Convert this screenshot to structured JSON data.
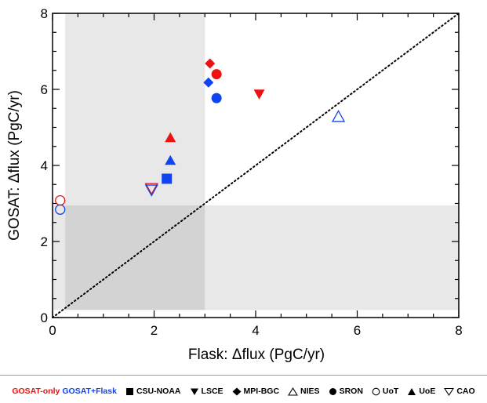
{
  "chart_data": {
    "type": "scatter",
    "xlabel_prefix": "Flask: ",
    "xlabel_delta": "Δ",
    "xlabel_suffix": "flux (PgC/yr)",
    "ylabel_prefix": "GOSAT: ",
    "ylabel_delta": "Δ",
    "ylabel_suffix": "flux (PgC/yr)",
    "xlim": [
      0,
      8
    ],
    "ylim": [
      0,
      8
    ],
    "xticks": [
      "0",
      "2",
      "4",
      "6",
      "8"
    ],
    "yticks": [
      "0",
      "2",
      "4",
      "6",
      "8"
    ],
    "reference_line": "1:1 dotted diagonal",
    "shaded_regions": [
      {
        "name": "flask-range",
        "x": [
          0.25,
          3.0
        ],
        "y": [
          0.2,
          8.0
        ]
      },
      {
        "name": "gosat-range",
        "x": [
          0.0,
          8.0
        ],
        "y": [
          0.2,
          2.95
        ]
      }
    ],
    "colors": {
      "gosat_only": "#ee1111",
      "gosat_flask": "#1144ee"
    },
    "points": [
      {
        "model": "CSU-NOAA",
        "marker": "square",
        "filled": true,
        "group": "gosat_flask",
        "x": 2.25,
        "y": 3.65
      },
      {
        "model": "LSCE",
        "marker": "triangle-down",
        "filled": true,
        "group": "gosat_only",
        "x": 4.07,
        "y": 5.88
      },
      {
        "model": "MPI-BGC",
        "marker": "diamond",
        "filled": true,
        "group": "gosat_only",
        "x": 3.1,
        "y": 6.68
      },
      {
        "model": "MPI-BGC",
        "marker": "diamond",
        "filled": true,
        "group": "gosat_flask",
        "x": 3.07,
        "y": 6.18
      },
      {
        "model": "NIES",
        "marker": "triangle-up",
        "filled": false,
        "group": "gosat_flask",
        "x": 5.63,
        "y": 5.28
      },
      {
        "model": "SRON",
        "marker": "circle",
        "filled": true,
        "group": "gosat_only",
        "x": 3.23,
        "y": 6.4
      },
      {
        "model": "SRON",
        "marker": "circle",
        "filled": true,
        "group": "gosat_flask",
        "x": 3.23,
        "y": 5.77
      },
      {
        "model": "UoT",
        "marker": "circle",
        "filled": false,
        "group": "gosat_only",
        "x": 0.15,
        "y": 3.08
      },
      {
        "model": "UoT",
        "marker": "circle",
        "filled": false,
        "group": "gosat_flask",
        "x": 0.15,
        "y": 2.84
      },
      {
        "model": "UoE",
        "marker": "triangle-up",
        "filled": true,
        "group": "gosat_only",
        "x": 2.32,
        "y": 4.73
      },
      {
        "model": "UoE",
        "marker": "triangle-up",
        "filled": true,
        "group": "gosat_flask",
        "x": 2.32,
        "y": 4.13
      },
      {
        "model": "CAO",
        "marker": "triangle-down",
        "filled": false,
        "group": "gosat_only",
        "x": 1.95,
        "y": 3.4
      },
      {
        "model": "CAO",
        "marker": "triangle-down",
        "filled": false,
        "group": "gosat_flask",
        "x": 1.95,
        "y": 3.36
      }
    ]
  },
  "legend": {
    "gosat_only_label": "GOSAT-only",
    "gosat_flask_label": "GOSAT+Flask",
    "items": [
      {
        "label": "CSU-NOAA",
        "icon": "square-filled-icon"
      },
      {
        "label": "LSCE",
        "icon": "triangle-down-filled-icon"
      },
      {
        "label": "MPI-BGC",
        "icon": "diamond-filled-icon"
      },
      {
        "label": "NIES",
        "icon": "triangle-up-open-icon"
      },
      {
        "label": "SRON",
        "icon": "circle-filled-icon"
      },
      {
        "label": "UoT",
        "icon": "circle-open-icon"
      },
      {
        "label": "UoE",
        "icon": "triangle-up-filled-icon"
      },
      {
        "label": "CAO",
        "icon": "triangle-down-open-icon"
      }
    ]
  }
}
